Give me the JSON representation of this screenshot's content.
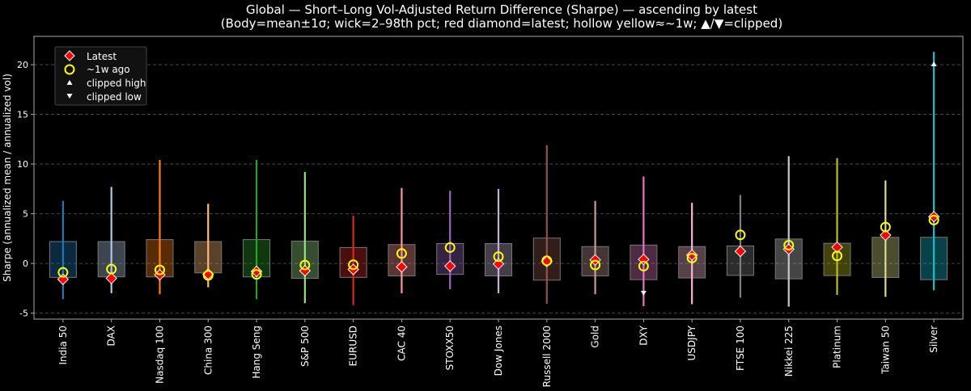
{
  "chart_data": {
    "type": "box",
    "title": "Global — Short–Long Vol-Adjusted Return Difference (Sharpe) — ascending by latest",
    "subtitle": "(Body=mean±1σ; wick=2–98th pct; red diamond=latest; hollow yellow≈~1w; ▲/▼=clipped)",
    "xlabel": "",
    "ylabel": "Sharpe (annualized mean / annualized vol)",
    "ylim": [
      -5.6,
      22.85
    ],
    "yticks": [
      -5,
      0,
      5,
      10,
      15,
      20
    ],
    "grid": "y-dashed",
    "legend_placement": "top-left",
    "legend": [
      {
        "label": "Latest",
        "marker": "red-diamond"
      },
      {
        "label": "~1w ago",
        "marker": "hollow-yellow-circle"
      },
      {
        "label": "clipped high",
        "marker": "white-triangle-up"
      },
      {
        "label": "clipped low",
        "marker": "white-triangle-down"
      }
    ],
    "categories": [
      "India 50",
      "DAX",
      "Nasdaq 100",
      "China 300",
      "Hang Seng",
      "S&P 500",
      "EURUSD",
      "CAC 40",
      "STOXX50",
      "Dow Jones",
      "Russell 2000",
      "Gold",
      "DXY",
      "USDJPY",
      "FTSE 100",
      "Nikkei 225",
      "Platinum",
      "Taiwan 50",
      "Silver"
    ],
    "colors": [
      "#1f77b4",
      "#aec7e8",
      "#ff7f0e",
      "#ffbb78",
      "#2ca02c",
      "#98df8a",
      "#d62728",
      "#ff9896",
      "#9467bd",
      "#c5b0d5",
      "#8c564b",
      "#c49c94",
      "#e377c2",
      "#f7b6d2",
      "#7f7f7f",
      "#c7c7c7",
      "#bcbd22",
      "#dbdb8d",
      "#17becf"
    ],
    "body_high": [
      2.2,
      2.2,
      2.4,
      2.2,
      2.4,
      2.25,
      1.6,
      1.9,
      2.0,
      2.0,
      2.55,
      1.7,
      1.85,
      1.7,
      1.76,
      2.46,
      2.03,
      2.63,
      2.63
    ],
    "body_low": [
      -1.4,
      -1.35,
      -1.35,
      -0.95,
      -1.35,
      -1.5,
      -1.4,
      -1.25,
      -1.1,
      -1.25,
      -1.68,
      -1.25,
      -1.63,
      -1.46,
      -1.2,
      -1.55,
      -1.22,
      -1.41,
      -1.63
    ],
    "wick_high": [
      6.3,
      7.7,
      10.4,
      6.0,
      10.4,
      9.2,
      4.8,
      7.6,
      7.3,
      7.5,
      11.9,
      6.3,
      8.75,
      6.1,
      6.9,
      10.8,
      10.6,
      8.35,
      21.3
    ],
    "wick_low": [
      -3.6,
      -3.0,
      -3.1,
      -2.4,
      -3.6,
      -4.0,
      -4.2,
      -3.0,
      -2.6,
      -3.0,
      -4.07,
      -3.1,
      -4.3,
      -4.1,
      -3.45,
      -4.35,
      -3.17,
      -3.36,
      -2.7
    ],
    "latest": [
      -1.6,
      -1.5,
      -1.14,
      -1.08,
      -0.8,
      -0.73,
      -0.6,
      -0.35,
      -0.27,
      -0.05,
      0.2,
      0.35,
      0.4,
      0.84,
      1.22,
      1.43,
      1.63,
      2.85,
      4.7
    ],
    "week_ago": [
      -0.9,
      -0.57,
      -0.65,
      -1.2,
      -1.1,
      -0.16,
      -0.13,
      1.0,
      1.6,
      0.68,
      0.27,
      -0.16,
      -0.27,
      0.54,
      2.87,
      1.84,
      0.76,
      3.66,
      4.37
    ],
    "clipped_high": [
      null,
      null,
      null,
      null,
      null,
      null,
      null,
      null,
      null,
      null,
      null,
      null,
      null,
      null,
      null,
      null,
      null,
      null,
      20.0
    ],
    "clipped_low": [
      null,
      null,
      null,
      null,
      null,
      null,
      null,
      null,
      null,
      null,
      null,
      null,
      -3.0,
      null,
      null,
      null,
      null,
      null,
      null
    ]
  }
}
